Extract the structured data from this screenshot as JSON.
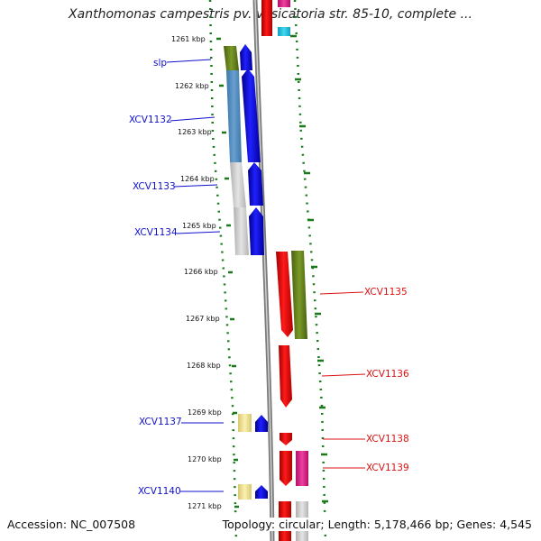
{
  "title": "Xanthomonas campestris pv. vesicatoria str. 85-10, complete ...",
  "footer": {
    "accession": "Accession: NC_007508",
    "topology": "Topology: circular; Length: 5,178,466 bp; Genes: 4,545"
  },
  "ticks": [
    {
      "label": "1261 kbp"
    },
    {
      "label": "1262 kbp"
    },
    {
      "label": "1263 kbp"
    },
    {
      "label": "1264 kbp"
    },
    {
      "label": "1265 kbp"
    },
    {
      "label": "1266 kbp"
    },
    {
      "label": "1267 kbp"
    },
    {
      "label": "1268 kbp"
    },
    {
      "label": "1269 kbp"
    },
    {
      "label": "1270 kbp"
    },
    {
      "label": "1271 kbp"
    }
  ],
  "colors": {
    "left_label": "#1010cc",
    "right_label": "#dd1010",
    "tick": "#1a7a1a",
    "backbone": "#8a8a8a"
  },
  "left_genes": [
    {
      "label": "slp",
      "cog_color": "#6a8a20"
    },
    {
      "label": "XCV1132",
      "cog_color": "#4a86b8"
    },
    {
      "label": "XCV1133",
      "cog_color": "#c8c8c8"
    },
    {
      "label": "XCV1134",
      "cog_color": "#c8c8c8"
    },
    {
      "label": "XCV1137",
      "cog_color": "#f0e090"
    },
    {
      "label": "XCV1140",
      "cog_color": "#f0e090"
    }
  ],
  "right_genes": [
    {
      "label": "XCV1135",
      "cog_color": "#6a8a20"
    },
    {
      "label": "XCV1136",
      "cog_color": ""
    },
    {
      "label": "XCV1138",
      "cog_color": ""
    },
    {
      "label": "XCV1139",
      "cog_color": "#e0208a"
    }
  ]
}
